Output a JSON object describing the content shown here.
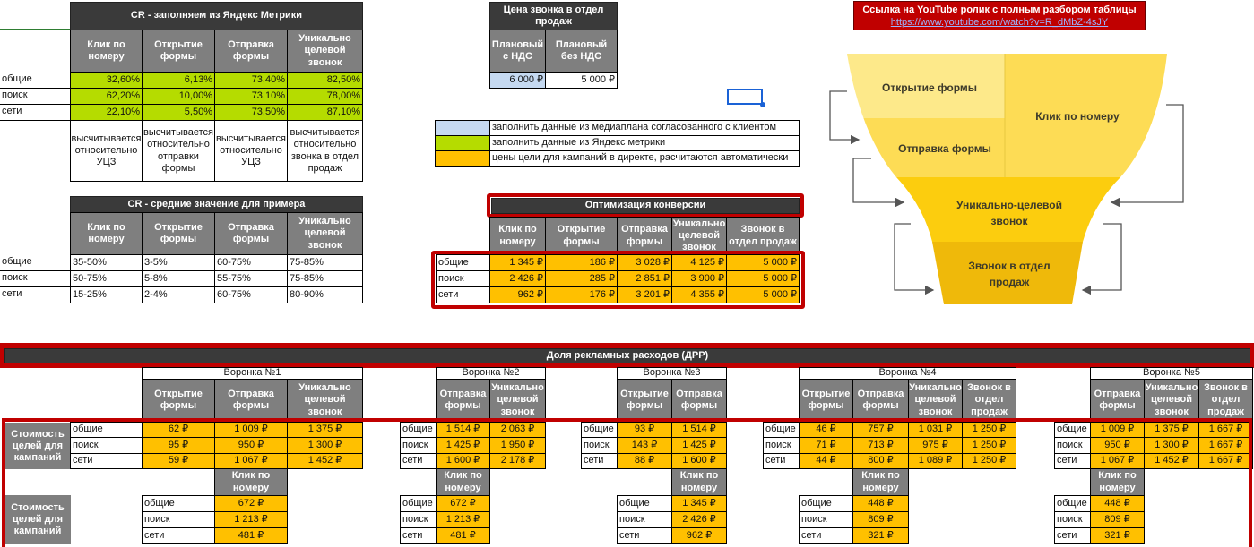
{
  "cr_metrika": {
    "title": "CR - заполняем из Яндекс Метрики",
    "headers": [
      "Клик по номеру",
      "Открытие формы",
      "Отправка формы",
      "Уникально целевой звонок"
    ],
    "rows": [
      {
        "label": "общие",
        "values": [
          "32,60%",
          "6,13%",
          "73,40%",
          "82,50%"
        ]
      },
      {
        "label": "поиск",
        "values": [
          "62,20%",
          "10,00%",
          "73,10%",
          "78,00%"
        ]
      },
      {
        "label": "сети",
        "values": [
          "22,10%",
          "5,50%",
          "73,50%",
          "87,10%"
        ]
      }
    ],
    "notes": [
      "высчитывается относительно УЦЗ",
      "высчитывается относительно отправки формы",
      "высчитывается относительно УЦЗ",
      "высчитывается относительно звонка в отдел продаж"
    ]
  },
  "cr_avg": {
    "title": "CR - средние значение для примера",
    "headers": [
      "Клик по номеру",
      "Открытие формы",
      "Отправка формы",
      "Уникально целевой звонок"
    ],
    "rows": [
      {
        "label": "общие",
        "values": [
          "35-50%",
          "3-5%",
          "60-75%",
          "75-85%"
        ]
      },
      {
        "label": "поиск",
        "values": [
          "50-75%",
          "5-8%",
          "55-75%",
          "75-85%"
        ]
      },
      {
        "label": "сети",
        "values": [
          "15-25%",
          "2-4%",
          "60-75%",
          "80-90%"
        ]
      }
    ]
  },
  "call_price": {
    "title": "Цена звонка в отдел продаж",
    "headers": [
      "Плановый с НДС",
      "Плановый без НДС"
    ],
    "values": [
      "6 000 ₽",
      "5 000 ₽"
    ]
  },
  "legend": [
    {
      "color": "#c5d9f1",
      "text": "заполнить данные из медиаплана согласованного с клиентом"
    },
    {
      "color": "#b5dc00",
      "text": "заполнить данные из Яндекс метрики"
    },
    {
      "color": "#ffc000",
      "text": "цены цели для кампаний в директе, расчитаются автоматически"
    }
  ],
  "optimization": {
    "title": "Оптимизация конверсии",
    "headers": [
      "Клик по номеру",
      "Открытие формы",
      "Отправка формы",
      "Уникально целевой звонок",
      "Звонок в отдел продаж"
    ],
    "rows": [
      {
        "label": "общие",
        "values": [
          "1 345 ₽",
          "186 ₽",
          "3 028 ₽",
          "4 125 ₽",
          "5 000 ₽"
        ]
      },
      {
        "label": "поиск",
        "values": [
          "2 426 ₽",
          "285 ₽",
          "2 851 ₽",
          "3 900 ₽",
          "5 000 ₽"
        ]
      },
      {
        "label": "сети",
        "values": [
          "962 ₽",
          "176 ₽",
          "3 201 ₽",
          "4 355 ₽",
          "5 000 ₽"
        ]
      }
    ]
  },
  "youtube": {
    "title": "Ссылка на YouTube ролик с полным разбором таблицы",
    "url": "https://www.youtube.com/watch?v=R_dMbZ-4sJY"
  },
  "funnel_diagram": {
    "open_form": "Открытие формы",
    "click_number": "Клик по номеру",
    "send_form": "Отправка формы",
    "unique_call": "Уникально-целевой звонок",
    "sales_call": "Звонок в отдел продаж"
  },
  "colors": {
    "accent_red": "#c00000",
    "orange": "#ffc000",
    "green": "#b5dc00",
    "blue": "#c5d9f1"
  },
  "drr": {
    "title": "Доля рекламных расходов (ДРР)",
    "cost_label": "Стоимость целей для кампаний",
    "funnels": [
      {
        "name": "Воронка №1",
        "headers": [
          "Открытие формы",
          "Отправка формы",
          "Уникально целевой звонок"
        ],
        "rows": [
          {
            "label": "общие",
            "values": [
              "62 ₽",
              "1 009 ₽",
              "1 375 ₽"
            ]
          },
          {
            "label": "поиск",
            "values": [
              "95 ₽",
              "950 ₽",
              "1 300 ₽"
            ]
          },
          {
            "label": "сети",
            "values": [
              "59 ₽",
              "1 067 ₽",
              "1 452 ₽"
            ]
          }
        ],
        "click": {
          "header": "Клик по номеру",
          "rows": [
            {
              "label": "общие",
              "value": "672 ₽"
            },
            {
              "label": "поиск",
              "value": "1 213 ₽"
            },
            {
              "label": "сети",
              "value": "481 ₽"
            }
          ]
        }
      },
      {
        "name": "Воронка №2",
        "headers": [
          "Отправка формы",
          "Уникально целевой звонок"
        ],
        "rows": [
          {
            "label": "общие",
            "values": [
              "1 514 ₽",
              "2 063 ₽"
            ]
          },
          {
            "label": "поиск",
            "values": [
              "1 425 ₽",
              "1 950 ₽"
            ]
          },
          {
            "label": "сети",
            "values": [
              "1 600 ₽",
              "2 178 ₽"
            ]
          }
        ],
        "click": {
          "header": "Клик по номеру",
          "rows": [
            {
              "label": "общие",
              "value": "672 ₽"
            },
            {
              "label": "поиск",
              "value": "1 213 ₽"
            },
            {
              "label": "сети",
              "value": "481 ₽"
            }
          ]
        }
      },
      {
        "name": "Воронка №3",
        "headers": [
          "Открытие формы",
          "Отправка формы"
        ],
        "rows": [
          {
            "label": "общие",
            "values": [
              "93 ₽",
              "1 514 ₽"
            ]
          },
          {
            "label": "поиск",
            "values": [
              "143 ₽",
              "1 425 ₽"
            ]
          },
          {
            "label": "сети",
            "values": [
              "88 ₽",
              "1 600 ₽"
            ]
          }
        ],
        "click": {
          "header": "Клик по номеру",
          "rows": [
            {
              "label": "общие",
              "value": "1 345 ₽"
            },
            {
              "label": "поиск",
              "value": "2 426 ₽"
            },
            {
              "label": "сети",
              "value": "962 ₽"
            }
          ]
        }
      },
      {
        "name": "Воронка №4",
        "headers": [
          "Открытие формы",
          "Отправка формы",
          "Уникально целевой звонок",
          "Звонок в отдел продаж"
        ],
        "rows": [
          {
            "label": "общие",
            "values": [
              "46 ₽",
              "757 ₽",
              "1 031 ₽",
              "1 250 ₽"
            ]
          },
          {
            "label": "поиск",
            "values": [
              "71 ₽",
              "713 ₽",
              "975 ₽",
              "1 250 ₽"
            ]
          },
          {
            "label": "сети",
            "values": [
              "44 ₽",
              "800 ₽",
              "1 089 ₽",
              "1 250 ₽"
            ]
          }
        ],
        "click": {
          "header": "Клик по номеру",
          "rows": [
            {
              "label": "общие",
              "value": "448 ₽"
            },
            {
              "label": "поиск",
              "value": "809 ₽"
            },
            {
              "label": "сети",
              "value": "321 ₽"
            }
          ]
        }
      },
      {
        "name": "Воронка №5",
        "headers": [
          "Отправка формы",
          "Уникально целевой звонок",
          "Звонок в отдел продаж"
        ],
        "rows": [
          {
            "label": "общие",
            "values": [
              "1 009 ₽",
              "1 375 ₽",
              "1 667 ₽"
            ]
          },
          {
            "label": "поиск",
            "values": [
              "950 ₽",
              "1 300 ₽",
              "1 667 ₽"
            ]
          },
          {
            "label": "сети",
            "values": [
              "1 067 ₽",
              "1 452 ₽",
              "1 667 ₽"
            ]
          }
        ],
        "click": {
          "header": "Клик по номеру",
          "rows": [
            {
              "label": "общие",
              "value": "448 ₽"
            },
            {
              "label": "поиск",
              "value": "809 ₽"
            },
            {
              "label": "сети",
              "value": "321 ₽"
            }
          ]
        }
      }
    ]
  }
}
